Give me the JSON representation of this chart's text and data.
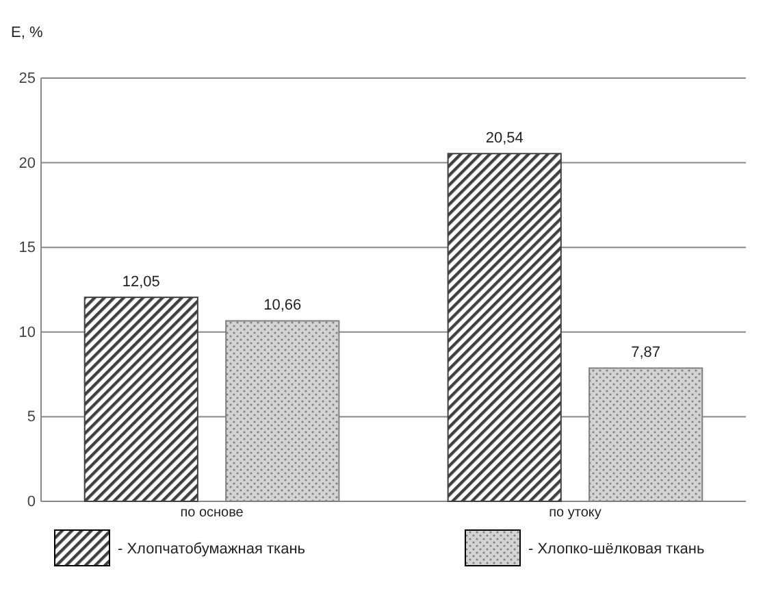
{
  "chart_data": {
    "type": "bar",
    "ylabel": "E, %",
    "categories": [
      "по основе",
      "по утоку"
    ],
    "series": [
      {
        "name": "- Хлопчатобумажная ткань",
        "color": "#404040",
        "values": [
          12.05,
          20.54
        ],
        "value_labels": [
          "12,05",
          "20,54"
        ]
      },
      {
        "name": "- Хлопко-шёлковая ткань",
        "color": "#808080",
        "values": [
          10.66,
          7.87
        ],
        "value_labels": [
          "10,66",
          "7,87"
        ]
      }
    ],
    "ylim": [
      0,
      25
    ],
    "yticks": [
      0,
      5,
      10,
      15,
      20,
      25
    ],
    "grid": "y",
    "legend": "bottom"
  }
}
